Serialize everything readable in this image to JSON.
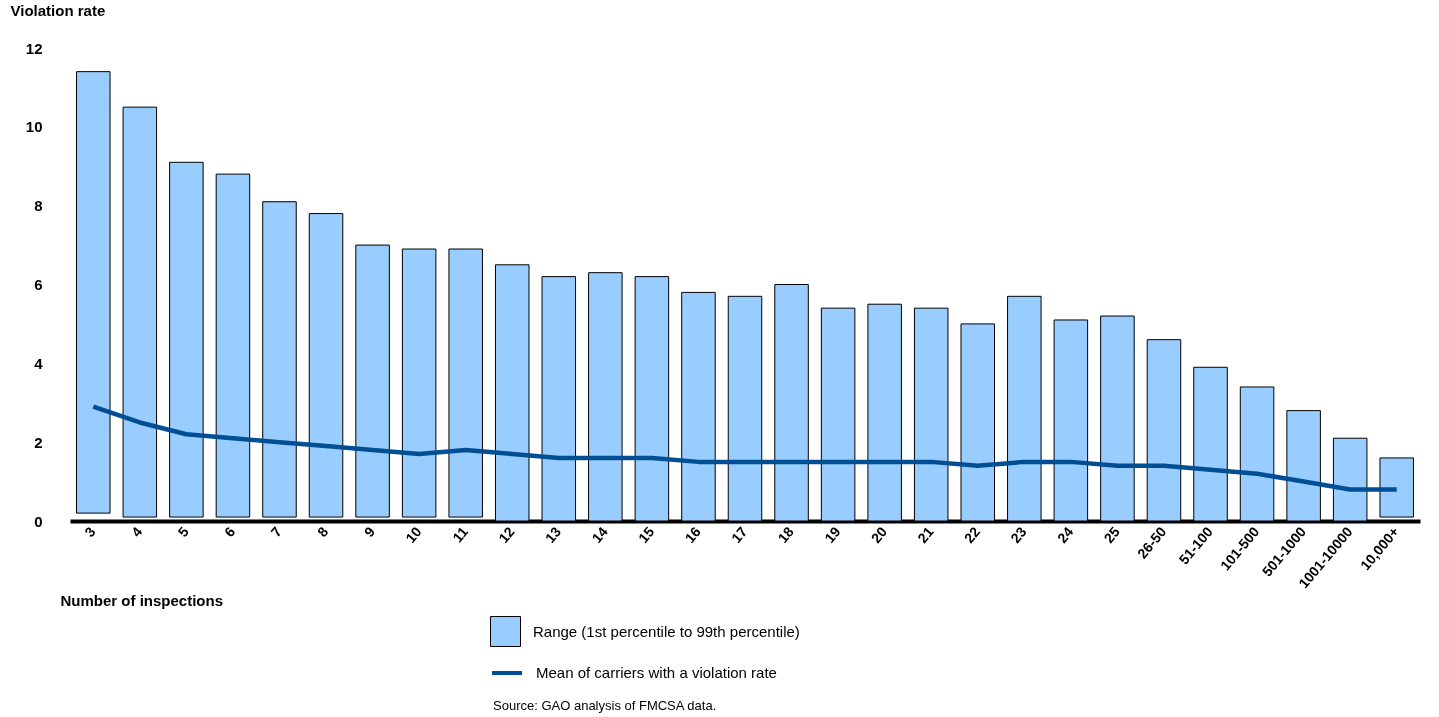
{
  "chart_data": {
    "type": "bar",
    "ylabel": "Violation rate",
    "xlabel": "Number of inspections",
    "categories": [
      "3",
      "4",
      "5",
      "6",
      "7",
      "8",
      "9",
      "10",
      "11",
      "12",
      "13",
      "14",
      "15",
      "16",
      "17",
      "18",
      "19",
      "20",
      "21",
      "22",
      "23",
      "24",
      "25",
      "26-50",
      "51-100",
      "101-500",
      "501-1000",
      "1001-10000",
      "10,000+"
    ],
    "series": [
      {
        "name": "Range (1st percentile to 99th percentile)",
        "color": "#99ccff",
        "base": [
          0.2,
          0.1,
          0.1,
          0.1,
          0.1,
          0.1,
          0.1,
          0.1,
          0.1,
          0,
          0,
          0,
          0,
          0,
          0,
          0,
          0,
          0,
          0,
          0,
          0,
          0,
          0,
          0,
          0,
          0,
          0,
          0,
          0.1
        ],
        "values": [
          11.2,
          10.4,
          9.0,
          8.7,
          8.0,
          7.7,
          6.9,
          6.8,
          6.8,
          6.5,
          6.2,
          6.3,
          6.2,
          5.8,
          5.7,
          6.0,
          5.4,
          5.5,
          5.4,
          5.0,
          5.7,
          5.1,
          5.2,
          4.6,
          3.9,
          3.4,
          2.8,
          2.1,
          1.5
        ]
      },
      {
        "name": "Mean of carriers with a violation rate",
        "type": "line",
        "color": "#004f95",
        "values": [
          2.9,
          2.5,
          2.2,
          2.1,
          2.0,
          1.9,
          1.8,
          1.7,
          1.8,
          1.7,
          1.6,
          1.6,
          1.6,
          1.5,
          1.5,
          1.5,
          1.5,
          1.5,
          1.5,
          1.4,
          1.5,
          1.5,
          1.4,
          1.4,
          1.3,
          1.2,
          1.0,
          0.8,
          0.8
        ]
      }
    ],
    "ylim": [
      0,
      12
    ],
    "yticks": [
      0,
      2,
      4,
      6,
      8,
      10,
      12
    ],
    "grid": false,
    "legend": "bottom",
    "annotations": [
      "Source: GAO analysis of FMCSA data."
    ]
  }
}
